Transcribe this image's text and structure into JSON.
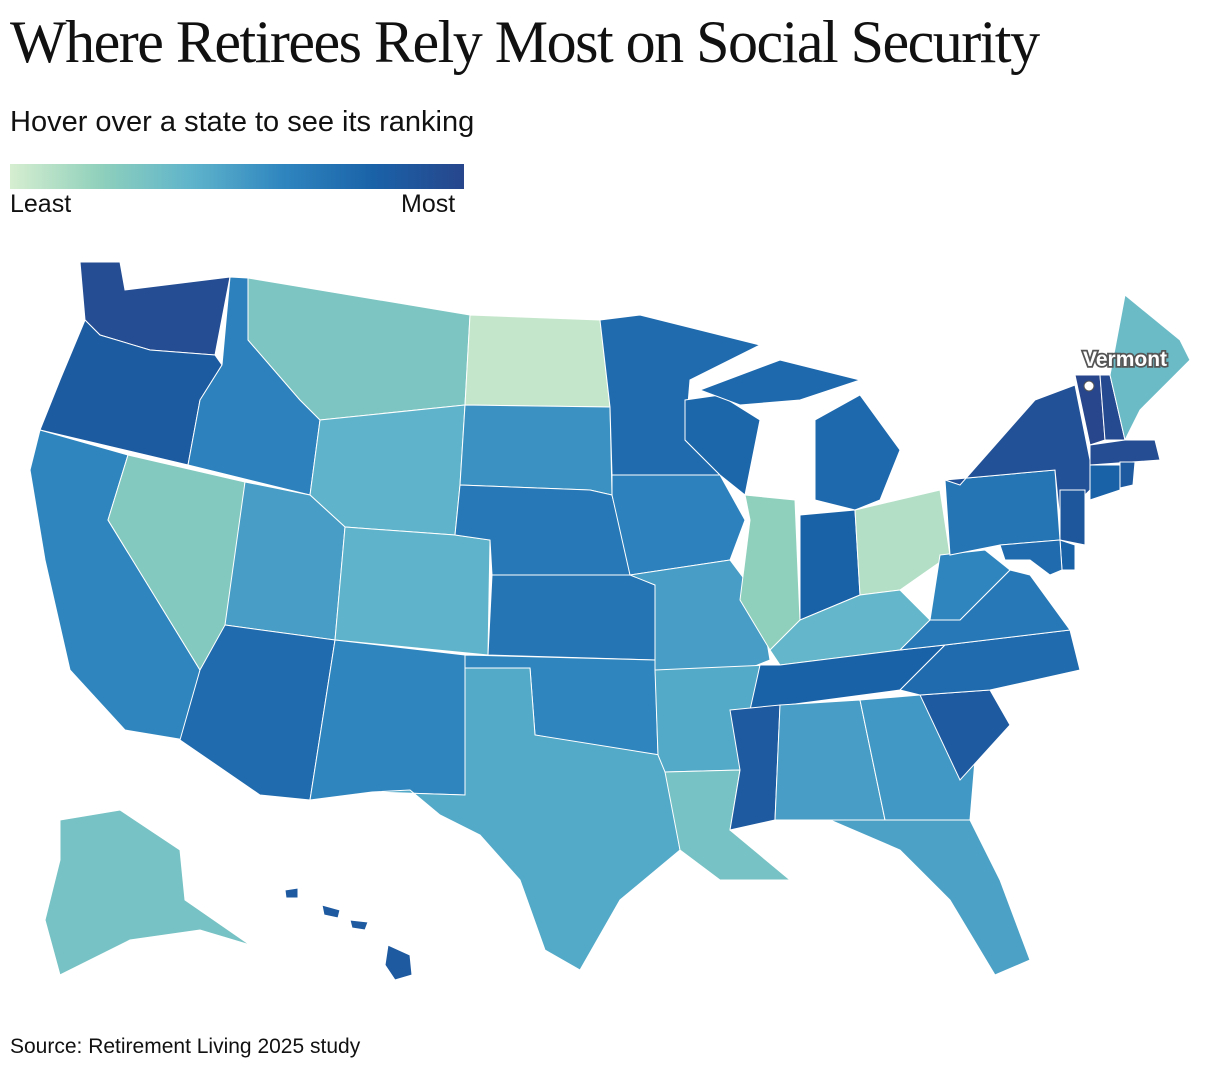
{
  "title": "Where Retirees Rely Most on Social Security",
  "subtitle": "Hover over a state to see its ranking",
  "legend": {
    "least": "Least",
    "most": "Most",
    "colors": [
      "#d6eed0",
      "#8fd0bc",
      "#5fb4cb",
      "#2f86bf",
      "#1a62a8",
      "#27468c"
    ]
  },
  "highlight": {
    "state": "Vermont"
  },
  "source": "Source: Retirement Living 2025 study",
  "chart_data": {
    "type": "choropleth",
    "scale": "relative reliance on Social Security (0 = least, 1 = most)",
    "states": [
      {
        "id": "WA",
        "name": "Washington",
        "value": 0.95
      },
      {
        "id": "OR",
        "name": "Oregon",
        "value": 0.85
      },
      {
        "id": "CA",
        "name": "California",
        "value": 0.6
      },
      {
        "id": "NV",
        "name": "Nevada",
        "value": 0.25
      },
      {
        "id": "ID",
        "name": "Idaho",
        "value": 0.62
      },
      {
        "id": "MT",
        "name": "Montana",
        "value": 0.28
      },
      {
        "id": "WY",
        "name": "Wyoming",
        "value": 0.4
      },
      {
        "id": "UT",
        "name": "Utah",
        "value": 0.5
      },
      {
        "id": "CO",
        "name": "Colorado",
        "value": 0.4
      },
      {
        "id": "AZ",
        "name": "Arizona",
        "value": 0.75
      },
      {
        "id": "NM",
        "name": "New Mexico",
        "value": 0.6
      },
      {
        "id": "ND",
        "name": "North Dakota",
        "value": 0.05
      },
      {
        "id": "SD",
        "name": "South Dakota",
        "value": 0.55
      },
      {
        "id": "NE",
        "name": "Nebraska",
        "value": 0.68
      },
      {
        "id": "KS",
        "name": "Kansas",
        "value": 0.7
      },
      {
        "id": "OK",
        "name": "Oklahoma",
        "value": 0.6
      },
      {
        "id": "TX",
        "name": "Texas",
        "value": 0.45
      },
      {
        "id": "MN",
        "name": "Minnesota",
        "value": 0.75
      },
      {
        "id": "IA",
        "name": "Iowa",
        "value": 0.62
      },
      {
        "id": "MO",
        "name": "Missouri",
        "value": 0.5
      },
      {
        "id": "AR",
        "name": "Arkansas",
        "value": 0.45
      },
      {
        "id": "LA",
        "name": "Louisiana",
        "value": 0.3
      },
      {
        "id": "WI",
        "name": "Wisconsin",
        "value": 0.78
      },
      {
        "id": "IL",
        "name": "Illinois",
        "value": 0.2
      },
      {
        "id": "IN",
        "name": "Indiana",
        "value": 0.8
      },
      {
        "id": "MI",
        "name": "Michigan",
        "value": 0.76
      },
      {
        "id": "OH",
        "name": "Ohio",
        "value": 0.1
      },
      {
        "id": "KY",
        "name": "Kentucky",
        "value": 0.38
      },
      {
        "id": "TN",
        "name": "Tennessee",
        "value": 0.8
      },
      {
        "id": "MS",
        "name": "Mississippi",
        "value": 0.86
      },
      {
        "id": "AL",
        "name": "Alabama",
        "value": 0.5
      },
      {
        "id": "GA",
        "name": "Georgia",
        "value": 0.52
      },
      {
        "id": "FL",
        "name": "Florida",
        "value": 0.48
      },
      {
        "id": "SC",
        "name": "South Carolina",
        "value": 0.86
      },
      {
        "id": "NC",
        "name": "North Carolina",
        "value": 0.75
      },
      {
        "id": "VA",
        "name": "Virginia",
        "value": 0.68
      },
      {
        "id": "WV",
        "name": "West Virginia",
        "value": 0.6
      },
      {
        "id": "PA",
        "name": "Pennsylvania",
        "value": 0.7
      },
      {
        "id": "NY",
        "name": "New York",
        "value": 0.92
      },
      {
        "id": "VT",
        "name": "Vermont",
        "value": 1.0
      },
      {
        "id": "NH",
        "name": "New Hampshire",
        "value": 0.97
      },
      {
        "id": "ME",
        "name": "Maine",
        "value": 0.35
      },
      {
        "id": "MA",
        "name": "Massachusetts",
        "value": 0.95
      },
      {
        "id": "CT",
        "name": "Connecticut",
        "value": 0.8
      },
      {
        "id": "RI",
        "name": "Rhode Island",
        "value": 0.86
      },
      {
        "id": "NJ",
        "name": "New Jersey",
        "value": 0.88
      },
      {
        "id": "DE",
        "name": "Delaware",
        "value": 0.8
      },
      {
        "id": "MD",
        "name": "Maryland",
        "value": 0.75
      },
      {
        "id": "AK",
        "name": "Alaska",
        "value": 0.3
      },
      {
        "id": "HI",
        "name": "Hawaii",
        "value": 0.86
      }
    ]
  }
}
